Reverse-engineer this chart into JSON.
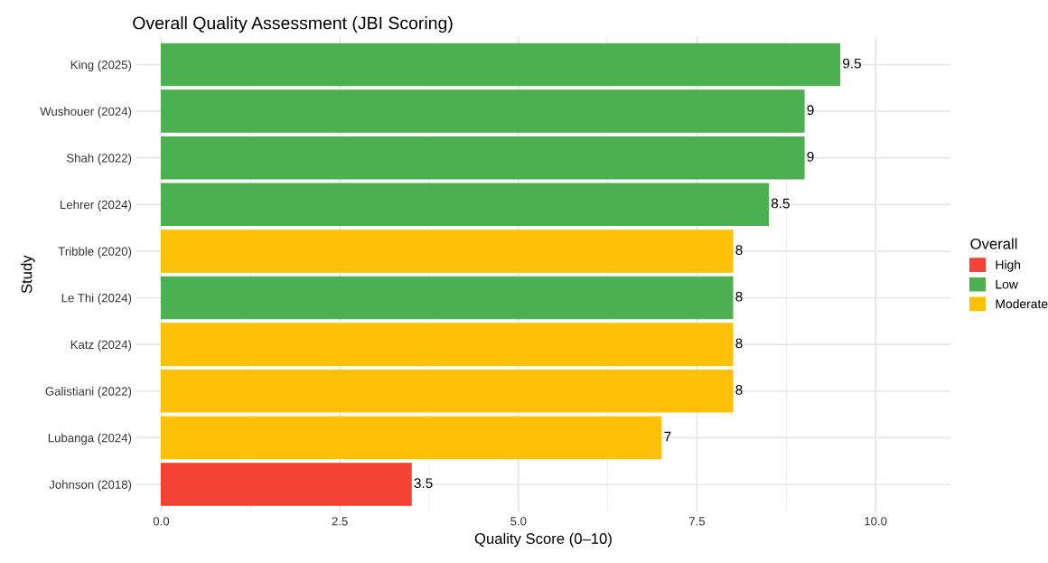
{
  "chart_data": {
    "type": "bar",
    "orientation": "horizontal",
    "title": "Overall Quality Assessment (JBI Scoring)",
    "xlabel": "Quality Score (0–10)",
    "ylabel": "Study",
    "legend_title": "Overall",
    "legend": "right",
    "categories": [
      "King (2025)",
      "Wushouer (2024)",
      "Shah (2022)",
      "Lehrer (2024)",
      "Tribble (2020)",
      "Le Thi (2024)",
      "Katz (2024)",
      "Galistiani (2022)",
      "Lubanga (2024)",
      "Johnson (2018)"
    ],
    "series": [
      {
        "name": "High",
        "color": "#f44336",
        "values": [
          null,
          null,
          null,
          null,
          null,
          null,
          null,
          null,
          null,
          3.5
        ]
      },
      {
        "name": "Low",
        "color": "#4caf50",
        "values": [
          9.5,
          9,
          9,
          8.5,
          null,
          8,
          null,
          null,
          null,
          null
        ]
      },
      {
        "name": "Moderate",
        "color": "#ffc107",
        "values": [
          null,
          null,
          null,
          null,
          8,
          null,
          8,
          8,
          7,
          null
        ]
      }
    ],
    "xlim": [
      -0.35,
      11.05
    ],
    "xticks": [
      {
        "value": 0,
        "label": "0.0"
      },
      {
        "value": 2.5,
        "label": "2.5"
      },
      {
        "value": 5,
        "label": "5.0"
      },
      {
        "value": 7.5,
        "label": "7.5"
      },
      {
        "value": 10,
        "label": "10.0"
      }
    ],
    "grid": true,
    "data_labels": true
  }
}
